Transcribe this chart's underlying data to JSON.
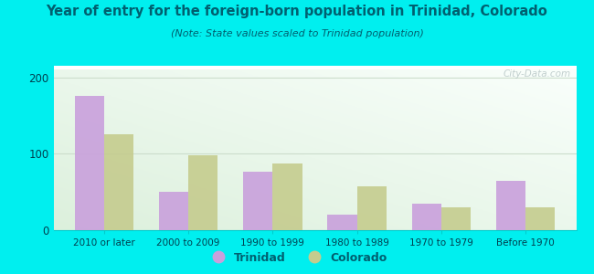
{
  "title": "Year of entry for the foreign-born population in Trinidad, Colorado",
  "subtitle": "(Note: State values scaled to Trinidad population)",
  "categories": [
    "2010 or later",
    "2000 to 2009",
    "1990 to 1999",
    "1980 to 1989",
    "1970 to 1979",
    "Before 1970"
  ],
  "trinidad_values": [
    175,
    50,
    77,
    20,
    35,
    65
  ],
  "colorado_values": [
    125,
    98,
    87,
    57,
    30,
    30
  ],
  "trinidad_color": "#C9A0DC",
  "colorado_color": "#C5CC8E",
  "background_outer": "#00EFEF",
  "title_color": "#006070",
  "subtitle_color": "#006070",
  "ylabel_ticks": [
    0,
    100,
    200
  ],
  "bar_width": 0.35,
  "watermark": "City-Data.com",
  "tick_label_color": "#004050",
  "grid_color": "#ccddcc",
  "spine_color": "#00CCCC"
}
